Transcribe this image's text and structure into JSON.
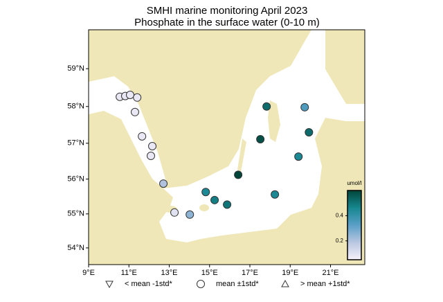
{
  "chart_data": {
    "type": "scatter",
    "title": "SMHI marine monitoring April 2023",
    "subtitle": "Phosphate in the surface water (0-10 m)",
    "projection": "mercator",
    "x": [
      10.55,
      10.82,
      11.06,
      11.41,
      11.3,
      11.65,
      12.16,
      12.09,
      12.71,
      13.26,
      14.02,
      14.81,
      15.25,
      15.87,
      16.42,
      17.52,
      17.83,
      18.24,
      19.72,
      19.93,
      19.41
    ],
    "values": [
      58.26,
      58.28,
      58.31,
      58.24,
      57.85,
      57.19,
      56.92,
      56.65,
      55.87,
      55.04,
      54.98,
      55.63,
      55.4,
      55.27,
      56.12,
      57.11,
      58.0,
      55.56,
      57.98,
      57.3,
      56.63
    ],
    "color_values": [
      0.08,
      0.08,
      0.08,
      0.08,
      0.08,
      0.08,
      0.08,
      0.08,
      0.2,
      0.1,
      0.25,
      0.45,
      0.48,
      0.5,
      0.6,
      0.58,
      0.52,
      0.45,
      0.35,
      0.52,
      0.45
    ],
    "xlim": [
      9,
      22.7
    ],
    "xticks": [
      {
        "value": 9,
        "label": "9°E"
      },
      {
        "value": 11,
        "label": "11°E"
      },
      {
        "value": 13,
        "label": "13°E"
      },
      {
        "value": 15,
        "label": "15°E"
      },
      {
        "value": 17,
        "label": "17°E"
      },
      {
        "value": 19,
        "label": "19°E"
      },
      {
        "value": 21,
        "label": "21°E"
      }
    ],
    "ylim": [
      53.5,
      60
    ],
    "yticks": [
      {
        "value": 54,
        "label": "54°N"
      },
      {
        "value": 55,
        "label": "55°N"
      },
      {
        "value": 56,
        "label": "56°N"
      },
      {
        "value": 57,
        "label": "57°N"
      },
      {
        "value": 58,
        "label": "58°N"
      },
      {
        "value": 59,
        "label": "59°N"
      }
    ],
    "colorbar": {
      "label": "umol/l",
      "lim": [
        0.05,
        0.6
      ],
      "ticks": [
        0.2,
        0.4
      ],
      "colors": [
        "#f7f2fa",
        "#b9c6e0",
        "#5a9fc8",
        "#16878f",
        "#01463a"
      ]
    },
    "legend": [
      {
        "symbol": "triangle-down",
        "label": "< mean -1std*"
      },
      {
        "symbol": "circle",
        "label": "mean ±1std*"
      },
      {
        "symbol": "triangle-up",
        "label": "> mean +1std*"
      }
    ]
  }
}
